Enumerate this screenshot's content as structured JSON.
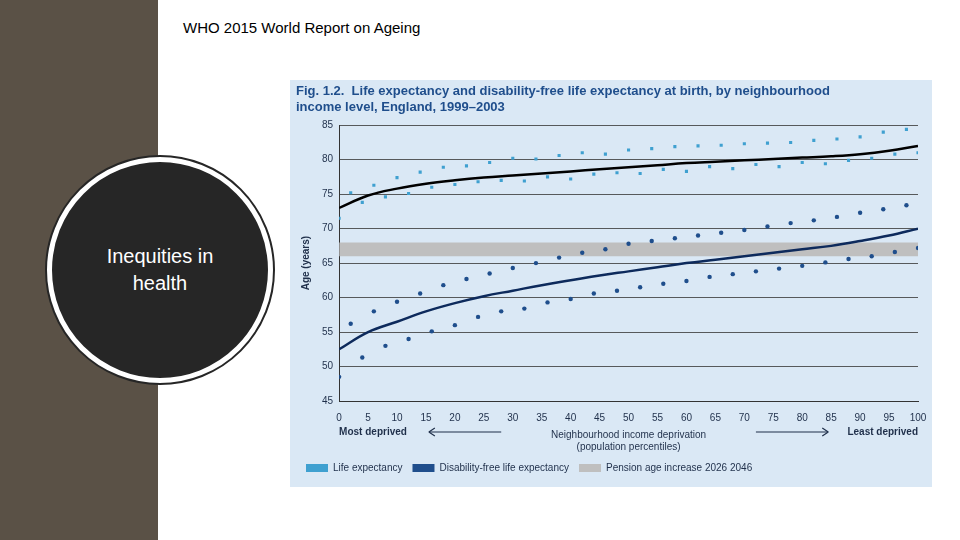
{
  "header": "WHO 2015 World Report on Ageing",
  "sidebar": "Inequities in health",
  "chart_data": {
    "type": "scatter",
    "title": [
      "Fig. 1.2.  Life expectancy and disability-free life expectancy at birth, by neighbourhood",
      "income level, England, 1999–2003"
    ],
    "x_label": [
      "Neighbourhood income deprivation",
      "(population percentiles)"
    ],
    "y_label": "Age (years)",
    "xlim": [
      0,
      100
    ],
    "xticks": [
      0,
      5,
      10,
      15,
      20,
      25,
      30,
      35,
      40,
      45,
      50,
      55,
      60,
      65,
      70,
      75,
      80,
      85,
      90,
      95,
      100
    ],
    "ylim": [
      45,
      85
    ],
    "yticks": [
      45,
      50,
      55,
      60,
      65,
      70,
      75,
      80,
      85
    ],
    "grid": true,
    "legend": "bottom",
    "annotations": [
      {
        "text": "Most deprived",
        "x": 0
      },
      {
        "text": "Least deprived",
        "x": 100
      }
    ],
    "series": [
      {
        "name": "Life expectancy",
        "color": "#3fa0d0",
        "type": "scatter",
        "marker": "square",
        "x": [
          0,
          2,
          4,
          6,
          8,
          10,
          12,
          14,
          16,
          18,
          20,
          22,
          24,
          26,
          28,
          30,
          32,
          34,
          36,
          38,
          40,
          42,
          44,
          46,
          48,
          50,
          52,
          54,
          56,
          58,
          60,
          62,
          64,
          66,
          68,
          70,
          72,
          74,
          76,
          78,
          80,
          82,
          84,
          86,
          88,
          90,
          92,
          94,
          96,
          98,
          100
        ],
        "values": [
          71.5,
          75.2,
          73.8,
          76.3,
          74.6,
          77.4,
          75.1,
          78.2,
          76.0,
          78.9,
          76.4,
          79.1,
          76.8,
          79.6,
          77.0,
          80.2,
          76.9,
          80.1,
          77.5,
          80.6,
          77.2,
          81.0,
          77.9,
          80.8,
          78.1,
          81.4,
          78.0,
          81.6,
          78.6,
          81.9,
          78.3,
          82.0,
          79.0,
          82.1,
          78.7,
          82.3,
          79.3,
          82.4,
          79.0,
          82.5,
          79.6,
          82.8,
          79.4,
          83.0,
          79.9,
          83.3,
          80.2,
          84.0,
          80.8,
          84.4,
          81.0
        ],
        "fit": {
          "color": "#000000",
          "x": [
            0,
            5,
            10,
            15,
            20,
            25,
            30,
            35,
            40,
            45,
            50,
            55,
            60,
            65,
            70,
            75,
            80,
            85,
            90,
            95,
            100
          ],
          "values": [
            73,
            74.8,
            75.8,
            76.5,
            77,
            77.4,
            77.7,
            78,
            78.3,
            78.6,
            78.9,
            79.2,
            79.5,
            79.7,
            79.9,
            80.1,
            80.3,
            80.5,
            80.8,
            81.3,
            82
          ]
        }
      },
      {
        "name": "Disability-free life expectancy",
        "color": "#1f4e8c",
        "type": "scatter",
        "marker": "circle",
        "x": [
          0,
          2,
          4,
          6,
          8,
          10,
          12,
          14,
          16,
          18,
          20,
          22,
          24,
          26,
          28,
          30,
          32,
          34,
          36,
          38,
          40,
          42,
          44,
          46,
          48,
          50,
          52,
          54,
          56,
          58,
          60,
          62,
          64,
          66,
          68,
          70,
          72,
          74,
          76,
          78,
          80,
          82,
          84,
          86,
          88,
          90,
          92,
          94,
          96,
          98,
          100
        ],
        "values": [
          48.5,
          56.2,
          51.3,
          58.0,
          53.0,
          59.4,
          54.0,
          60.6,
          55.1,
          61.8,
          56.0,
          62.7,
          57.2,
          63.5,
          58.0,
          64.3,
          58.4,
          65.0,
          59.3,
          65.8,
          59.8,
          66.5,
          60.6,
          67.0,
          61.0,
          67.8,
          61.5,
          68.2,
          62.0,
          68.6,
          62.4,
          69.0,
          63.0,
          69.4,
          63.4,
          69.8,
          63.8,
          70.3,
          64.2,
          70.8,
          64.6,
          71.2,
          65.1,
          71.7,
          65.6,
          72.3,
          66.0,
          72.8,
          66.6,
          73.4,
          67.2
        ],
        "fit": {
          "color": "#0d2a5c",
          "x": [
            0,
            5,
            10,
            15,
            20,
            25,
            30,
            35,
            40,
            45,
            50,
            55,
            60,
            65,
            70,
            75,
            80,
            85,
            90,
            95,
            100
          ],
          "values": [
            52.5,
            55,
            56.5,
            58,
            59.2,
            60.2,
            61,
            61.8,
            62.5,
            63.2,
            63.8,
            64.4,
            65,
            65.5,
            66,
            66.5,
            67,
            67.5,
            68.2,
            69,
            70
          ]
        }
      },
      {
        "name": "Pension age increase 2026 2046",
        "color": "#bfbfbf",
        "type": "band",
        "x": [
          0,
          100
        ],
        "values": [
          68,
          68
        ],
        "lower": [
          66,
          66
        ]
      }
    ]
  }
}
